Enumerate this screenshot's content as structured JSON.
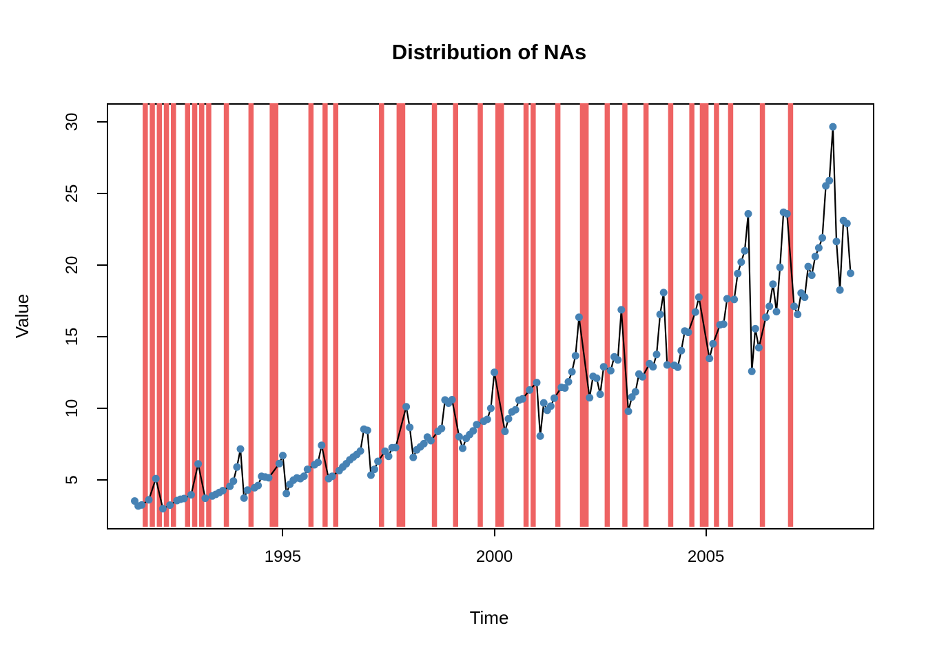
{
  "title": "Distribution of NAs",
  "axes": {
    "x_label": "Time",
    "y_label": "Value",
    "x_tick_labels": [
      "1995",
      "2000",
      "2005"
    ],
    "y_tick_labels": [
      "5",
      "10",
      "15",
      "20",
      "25",
      "30"
    ]
  },
  "colors": {
    "na_bar": "#EE6363",
    "point": "#4682B4",
    "line": "#000000",
    "frame": "#000000",
    "background": "#FFFFFF"
  },
  "chart_data": {
    "type": "line",
    "title": "Distribution of NAs",
    "xlabel": "Time",
    "ylabel": "Value",
    "x_ticks": [
      1995,
      2000,
      2005
    ],
    "y_ticks": [
      5,
      10,
      15,
      20,
      25,
      30
    ],
    "x_start_year": 1991.5,
    "frequency": "monthly",
    "xlim": [
      1990.75,
      2009.1
    ],
    "ylim": [
      2.0,
      31.3
    ],
    "grid": false,
    "legend": "none",
    "na_marker": "red vertical bar spanning full plot height at each missing month",
    "values": [
      3.53,
      3.18,
      3.25,
      null,
      3.61,
      null,
      5.09,
      null,
      2.99,
      null,
      3.24,
      null,
      3.56,
      3.65,
      3.7,
      null,
      3.96,
      null,
      6.12,
      null,
      3.72,
      null,
      3.88,
      3.99,
      4.12,
      4.25,
      null,
      4.56,
      4.92,
      5.9,
      7.16,
      3.73,
      4.29,
      null,
      4.45,
      4.61,
      5.25,
      5.2,
      5.15,
      null,
      null,
      6.14,
      6.7,
      4.05,
      4.69,
      4.98,
      5.14,
      5.09,
      5.26,
      5.74,
      null,
      6.06,
      6.22,
      7.42,
      null,
      5.09,
      5.25,
      null,
      5.65,
      5.9,
      6.13,
      6.4,
      6.6,
      6.78,
      7.02,
      8.54,
      8.46,
      5.33,
      5.74,
      6.3,
      null,
      7.0,
      6.65,
      7.25,
      7.26,
      null,
      null,
      10.11,
      8.67,
      6.57,
      7.1,
      7.31,
      7.53,
      7.99,
      7.74,
      null,
      8.39,
      8.59,
      10.58,
      10.36,
      10.6,
      null,
      8.02,
      7.21,
      7.9,
      8.17,
      8.43,
      8.86,
      null,
      9.1,
      9.23,
      10.0,
      12.51,
      null,
      null,
      8.39,
      9.27,
      9.75,
      9.9,
      10.57,
      10.66,
      null,
      11.28,
      null,
      11.8,
      8.06,
      10.38,
      9.86,
      10.15,
      10.71,
      null,
      11.46,
      11.42,
      11.85,
      12.55,
      13.67,
      16.36,
      null,
      null,
      10.74,
      12.23,
      12.1,
      10.98,
      12.9,
      null,
      12.63,
      13.59,
      13.38,
      16.88,
      null,
      9.79,
      10.79,
      11.15,
      12.39,
      12.2,
      null,
      13.11,
      12.9,
      13.76,
      16.56,
      18.08,
      13.03,
      null,
      13.0,
      12.87,
      14.03,
      15.4,
      15.31,
      null,
      16.72,
      17.76,
      null,
      null,
      13.48,
      14.51,
      null,
      15.83,
      15.88,
      17.65,
      null,
      17.6,
      19.41,
      20.21,
      21.0,
      23.58,
      12.58,
      15.56,
      14.23,
      null,
      16.36,
      17.12,
      18.67,
      16.75,
      19.84,
      23.69,
      23.58,
      null,
      17.12,
      16.56,
      18.05,
      17.76,
      19.9,
      19.3,
      20.6,
      21.2,
      21.9,
      25.53,
      25.9,
      29.66,
      21.65,
      18.26,
      23.11,
      22.91,
      19.43
    ]
  }
}
